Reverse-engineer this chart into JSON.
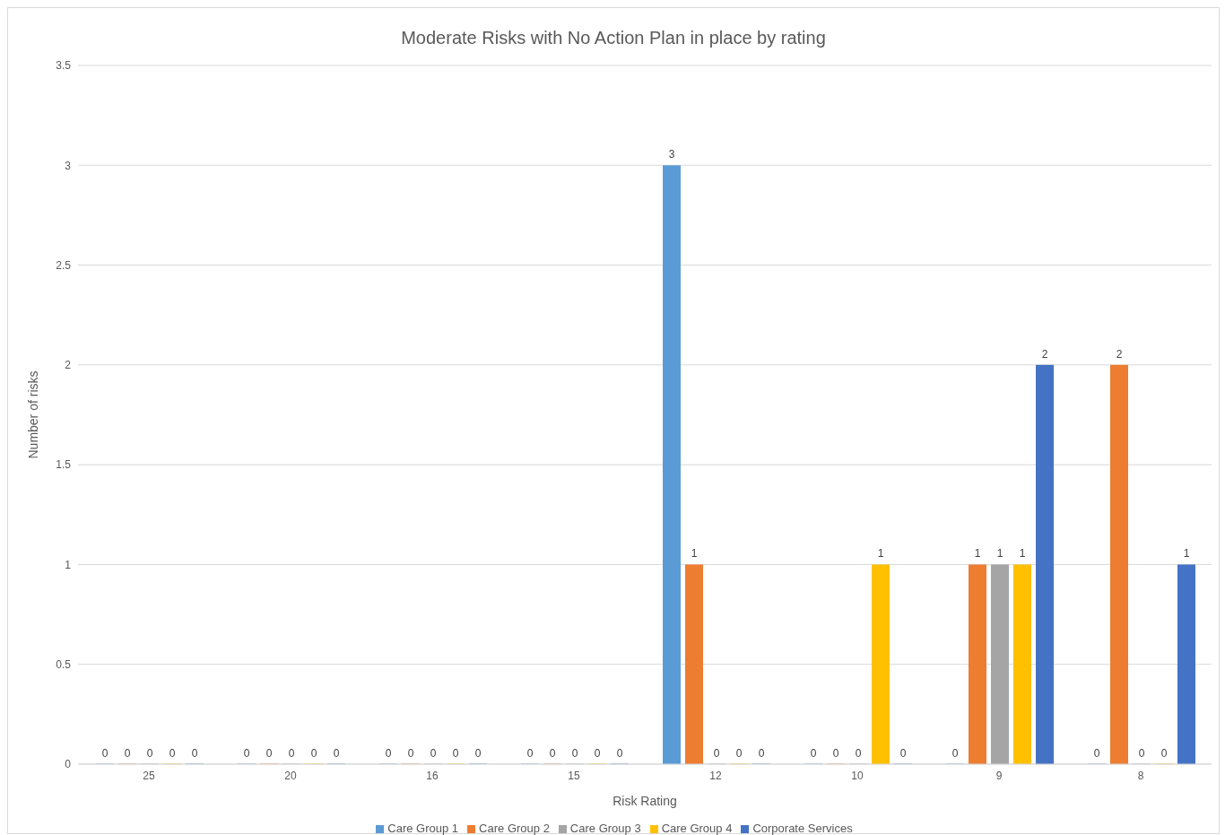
{
  "chart_data": {
    "type": "bar",
    "title": "Moderate Risks with No Action Plan in place by rating",
    "xlabel": "Risk Rating",
    "ylabel": "Number of risks",
    "categories": [
      "25",
      "20",
      "16",
      "15",
      "12",
      "10",
      "9",
      "8"
    ],
    "series": [
      {
        "name": "Care Group 1",
        "color": "#5b9bd5",
        "values": [
          0,
          0,
          0,
          0,
          3,
          0,
          0,
          0
        ]
      },
      {
        "name": "Care Group 2",
        "color": "#ed7d31",
        "values": [
          0,
          0,
          0,
          0,
          1,
          0,
          1,
          2
        ]
      },
      {
        "name": "Care Group 3",
        "color": "#a5a5a5",
        "values": [
          0,
          0,
          0,
          0,
          0,
          0,
          1,
          0
        ]
      },
      {
        "name": "Care Group 4",
        "color": "#ffc000",
        "values": [
          0,
          0,
          0,
          0,
          0,
          1,
          1,
          0
        ]
      },
      {
        "name": "Corporate Services",
        "color": "#4472c4",
        "values": [
          0,
          0,
          0,
          0,
          0,
          0,
          2,
          1
        ]
      }
    ],
    "ylim": [
      0,
      3.5
    ],
    "yticks": [
      0,
      0.5,
      1,
      1.5,
      2,
      2.5,
      3,
      3.5
    ],
    "grid": "y",
    "legend": "bottom",
    "data_labels": true
  }
}
